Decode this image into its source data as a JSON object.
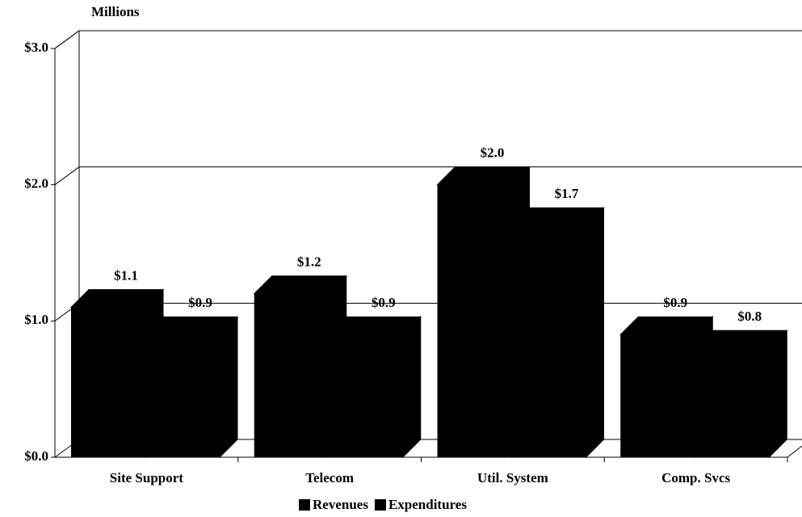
{
  "chart_data": {
    "type": "bar3d",
    "y_axis_label": "Millions",
    "categories": [
      "Site Support",
      "Telecom",
      "Util. System",
      "Comp. Svcs"
    ],
    "series": [
      {
        "name": "Revenues",
        "color": "#000000",
        "values": [
          1.1,
          1.2,
          2.0,
          0.9
        ],
        "value_labels": [
          "$1.1",
          "$1.2",
          "$2.0",
          "$0.9"
        ]
      },
      {
        "name": "Expenditures",
        "color": "#000000",
        "values": [
          0.9,
          0.9,
          1.7,
          0.8
        ],
        "value_labels": [
          "$0.9",
          "$0.9",
          "$1.7",
          "$0.8"
        ]
      }
    ],
    "ylim": [
      0,
      3
    ],
    "yticks": [
      {
        "value": 0,
        "label": "$0.0"
      },
      {
        "value": 1,
        "label": "$1.0"
      },
      {
        "value": 2,
        "label": "$2.0"
      },
      {
        "value": 3,
        "label": "$3.0"
      }
    ],
    "grid": true,
    "legend": "bottom"
  }
}
